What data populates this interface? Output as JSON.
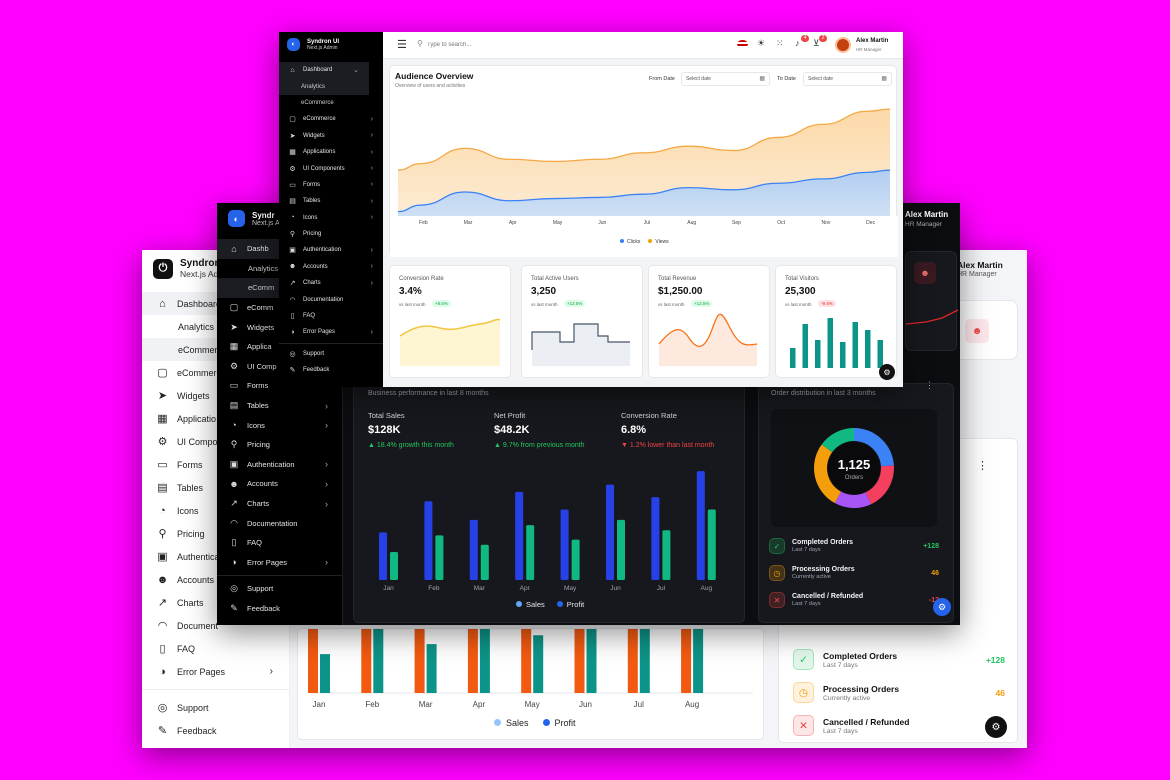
{
  "app": {
    "name": "Syndron UI",
    "subtitle": "Next.js Admin",
    "logo": "power-icon"
  },
  "user": {
    "name": "Alex Martin",
    "role": "HR Manager"
  },
  "search": {
    "placeholder": "Type to search..."
  },
  "nav": {
    "dashboard": "Dashboard",
    "analytics": "Analytics",
    "ecommerce_sub": "eCommerce",
    "ecommerce": "eCommerce",
    "widgets": "Widgets",
    "applications": "Applications",
    "ui_components": "UI Components",
    "forms": "Forms",
    "tables": "Tables",
    "icons": "Icons",
    "pricing": "Pricing",
    "authentication": "Authentication",
    "accounts": "Accounts",
    "charts": "Charts",
    "documentation": "Documentation",
    "faq": "FAQ",
    "error_pages": "Error Pages",
    "support": "Support",
    "feedback": "Feedback"
  },
  "nav_truncated_back": {
    "app_name": "Syndron U",
    "app_subtitle": "Next.js Adm",
    "ecommerce": "eCommerc",
    "applications": "Applicatio",
    "ui_components": "UI Compon",
    "ecommerce_sub": "eCommerc",
    "authentication": "Authentica",
    "documentation": "Document"
  },
  "nav_truncated_mid": {
    "app_name": "Syndr",
    "app_subtitle": "Next.js Ad",
    "dashboard": "Dashb",
    "ecommerce": "eComm",
    "ecommerce_sub": "eComm",
    "applications": "Applica",
    "ui_components": "UI Comp"
  },
  "badges": {
    "notifications": "4",
    "cart": "2"
  },
  "audience": {
    "title": "Audience Overview",
    "subtitle": "Overview of users and activities",
    "from_label": "From Date",
    "to_label": "To Date",
    "date_placeholder": "Select date",
    "legend_clicks": "Clicks",
    "legend_views": "Views",
    "clicks_color": "#3b82f6",
    "views_color": "#f59e0b"
  },
  "stats": [
    {
      "label": "Conversion Rate",
      "value": "3.4%",
      "note": "vs last month",
      "change": "+8.6%",
      "up": true,
      "spark": "line-area",
      "color": "#f5c542"
    },
    {
      "label": "Total Active Users",
      "value": "3,250",
      "note": "vs last month",
      "change": "+12.5%",
      "up": true,
      "spark": "step",
      "color": "#475569"
    },
    {
      "label": "Total Revenue",
      "value": "$1,250.00",
      "note": "vs last month",
      "change": "+12.5%",
      "up": true,
      "spark": "area",
      "color": "#f97316"
    },
    {
      "label": "Total Visitors",
      "value": "25,300",
      "note": "vs last month",
      "change": "-9.4%",
      "up": false,
      "spark": "bars",
      "color": "#0d9488"
    }
  ],
  "business": {
    "subtitle": "Business performance in last 8 months",
    "metrics": [
      {
        "label": "Total Sales",
        "value": "$128K",
        "trend": "▲ 18.4% growth this month",
        "up": true
      },
      {
        "label": "Net Profit",
        "value": "$48.2K",
        "trend": "▲ 9.7% from previous month",
        "up": true
      },
      {
        "label": "Conversion Rate",
        "value": "6.8%",
        "trend": "▼ 1.2% lower than last month",
        "up": false
      }
    ],
    "legend_sales": "Sales",
    "legend_profit": "Profit"
  },
  "orders": {
    "subtitle": "Order distribution in last 3 months",
    "total": "1,125",
    "total_label": "Orders",
    "items": [
      {
        "title": "Completed Orders",
        "sub": "Last 7 days",
        "value": "+128",
        "color": "#22c55e",
        "icon": "check-circle-icon"
      },
      {
        "title": "Processing Orders",
        "sub": "Currently active",
        "value": "46",
        "color": "#f59e0b",
        "icon": "clock-icon"
      },
      {
        "title": "Cancelled / Refunded",
        "sub": "Last 7 days",
        "value": "-12",
        "color": "#ef4444",
        "icon": "x-circle-icon"
      }
    ]
  },
  "chart_data": [
    {
      "type": "area",
      "title": "Audience Overview",
      "categories": [
        "Feb",
        "Mar",
        "Apr",
        "May",
        "Jun",
        "Jul",
        "Aug",
        "Sep",
        "Oct",
        "Nov",
        "Dec"
      ],
      "series": [
        {
          "name": "Views",
          "values": [
            48,
            62,
            52,
            50,
            52,
            58,
            64,
            60,
            72,
            84,
            96
          ]
        },
        {
          "name": "Clicks",
          "values": [
            10,
            22,
            14,
            16,
            17,
            20,
            26,
            24,
            30,
            34,
            40
          ]
        }
      ],
      "ylim": [
        0,
        110
      ]
    },
    {
      "type": "bar",
      "categories": [
        "Jan",
        "Feb",
        "Mar",
        "Apr",
        "May",
        "Jun",
        "Jul",
        "Aug"
      ],
      "series": [
        {
          "name": "Sales",
          "values": [
            46,
            76,
            58,
            85,
            68,
            92,
            80,
            105
          ]
        },
        {
          "name": "Profit",
          "values": [
            27,
            43,
            34,
            53,
            39,
            58,
            48,
            68
          ]
        }
      ],
      "ylim": [
        0,
        110
      ]
    },
    {
      "type": "bar",
      "categories": [
        "Jan",
        "Feb",
        "Mar",
        "Apr",
        "May",
        "Jun",
        "Jul",
        "Aug"
      ],
      "series": [
        {
          "name": "Sales",
          "values": [
            62,
            80,
            72,
            68,
            82,
            78,
            76,
            86
          ]
        },
        {
          "name": "Profit",
          "values": [
            35,
            58,
            44,
            70,
            52,
            72,
            60,
            80
          ]
        }
      ],
      "ylim": [
        0,
        90
      ]
    },
    {
      "type": "pie",
      "total": "1,125",
      "categories": [
        "Blue",
        "Red",
        "Purple",
        "Orange",
        "Green"
      ],
      "values": [
        24,
        19,
        15,
        27,
        15
      ],
      "colors": [
        "#3b82f6",
        "#f43f5e",
        "#a855f7",
        "#f59e0b",
        "#10b981"
      ]
    }
  ]
}
